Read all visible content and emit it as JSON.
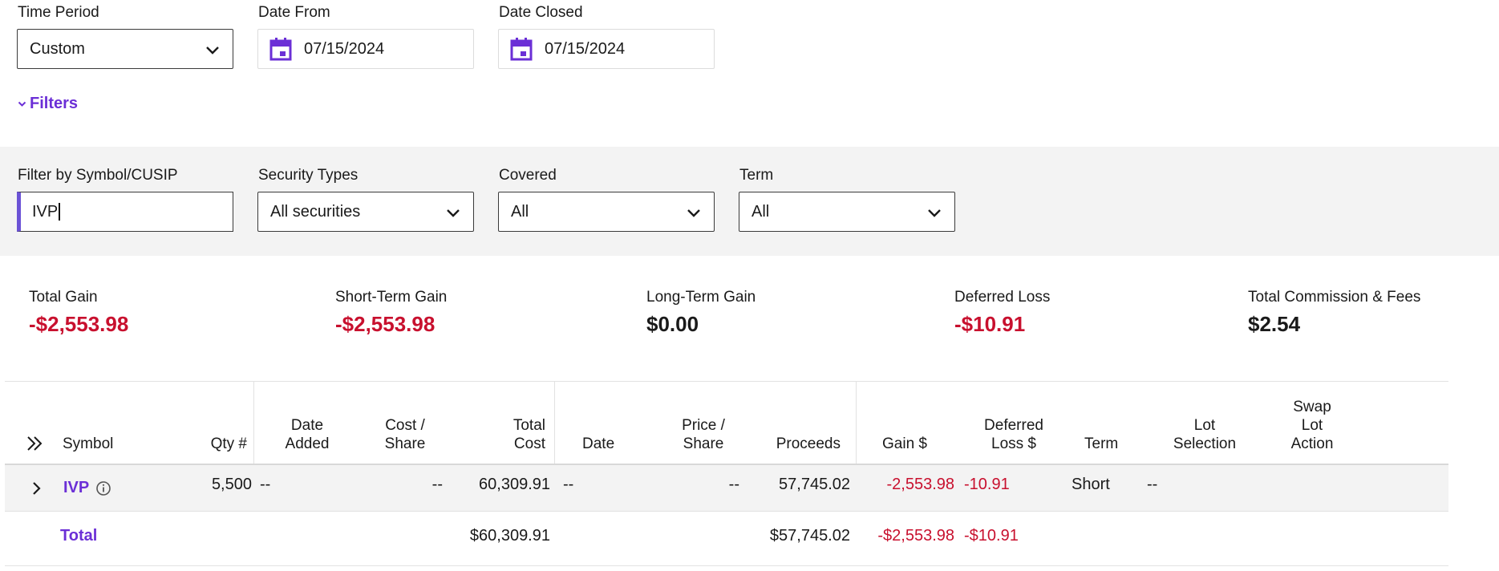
{
  "top_filters": {
    "time_period": {
      "label": "Time Period",
      "value": "Custom"
    },
    "date_from": {
      "label": "Date From",
      "value": "07/15/2024"
    },
    "date_closed": {
      "label": "Date Closed",
      "value": "07/15/2024"
    },
    "filters_toggle": "Filters"
  },
  "filter_band": {
    "symbol": {
      "label": "Filter by Symbol/CUSIP",
      "value": "IVP"
    },
    "security_types": {
      "label": "Security Types",
      "value": "All securities"
    },
    "covered": {
      "label": "Covered",
      "value": "All"
    },
    "term": {
      "label": "Term",
      "value": "All"
    }
  },
  "summary": {
    "total_gain": {
      "label": "Total Gain",
      "value": "-$2,553.98"
    },
    "short_term_gain": {
      "label": "Short-Term Gain",
      "value": "-$2,553.98"
    },
    "long_term_gain": {
      "label": "Long-Term Gain",
      "value": "$0.00"
    },
    "deferred_loss": {
      "label": "Deferred Loss",
      "value": "-$10.91"
    },
    "total_commission": {
      "label": "Total Commission & Fees",
      "value": "$2.54"
    }
  },
  "table": {
    "headers": {
      "symbol": "Symbol",
      "qty": "Qty #",
      "date_added_1": "Date",
      "date_added_2": "Added",
      "cost_share_1": "Cost /",
      "cost_share_2": "Share",
      "total_cost_1": "Total",
      "total_cost_2": "Cost",
      "date": "Date",
      "price_share_1": "Price /",
      "price_share_2": "Share",
      "proceeds": "Proceeds",
      "gain": "Gain $",
      "deferred_1": "Deferred",
      "deferred_2": "Loss $",
      "term": "Term",
      "lot_1": "Lot",
      "lot_2": "Selection",
      "swap_1": "Swap",
      "swap_2": "Lot",
      "swap_3": "Action"
    },
    "row": {
      "symbol": "IVP",
      "qty": "5,500",
      "date_added": "--",
      "cost_share": "--",
      "total_cost": "60,309.91",
      "date": "--",
      "price_share": "--",
      "proceeds": "57,745.02",
      "gain": "-2,553.98",
      "deferred": "-10.91",
      "term": "Short",
      "lot_selection": "--"
    },
    "total": {
      "label": "Total",
      "total_cost": "$60,309.91",
      "proceeds": "$57,745.02",
      "gain": "-$2,553.98",
      "deferred": "-$10.91"
    }
  },
  "colors": {
    "accent": "#6b2fd6",
    "negative": "#c8102e",
    "band": "#f3f3f3"
  }
}
